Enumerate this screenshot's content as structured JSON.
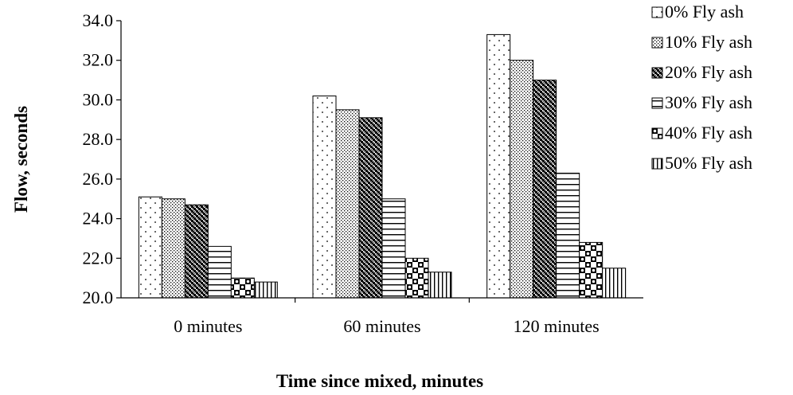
{
  "chart_data": {
    "type": "bar",
    "xlabel": "Time since mixed, minutes",
    "ylabel": "Flow, seconds",
    "categories": [
      "0 minutes",
      "60 minutes",
      "120 minutes"
    ],
    "ylim": [
      20.0,
      34.0
    ],
    "yticks": [
      "20.0",
      "22.0",
      "24.0",
      "26.0",
      "28.0",
      "30.0",
      "32.0",
      "34.0"
    ],
    "grid": false,
    "legend_position": "right",
    "series": [
      {
        "name": "0% Fly ash",
        "pattern": "dots-sparse",
        "values": [
          25.1,
          30.2,
          33.3
        ]
      },
      {
        "name": "10% Fly ash",
        "pattern": "dots-dense",
        "values": [
          25.0,
          29.5,
          32.0
        ]
      },
      {
        "name": "20% Fly ash",
        "pattern": "checker",
        "values": [
          24.7,
          29.1,
          31.0
        ]
      },
      {
        "name": "30% Fly ash",
        "pattern": "horizontal",
        "values": [
          22.6,
          25.0,
          26.3
        ]
      },
      {
        "name": "40% Fly ash",
        "pattern": "big-checker",
        "values": [
          21.0,
          22.0,
          22.8
        ]
      },
      {
        "name": "50% Fly ash",
        "pattern": "vertical",
        "values": [
          20.8,
          21.3,
          21.5
        ]
      }
    ]
  }
}
